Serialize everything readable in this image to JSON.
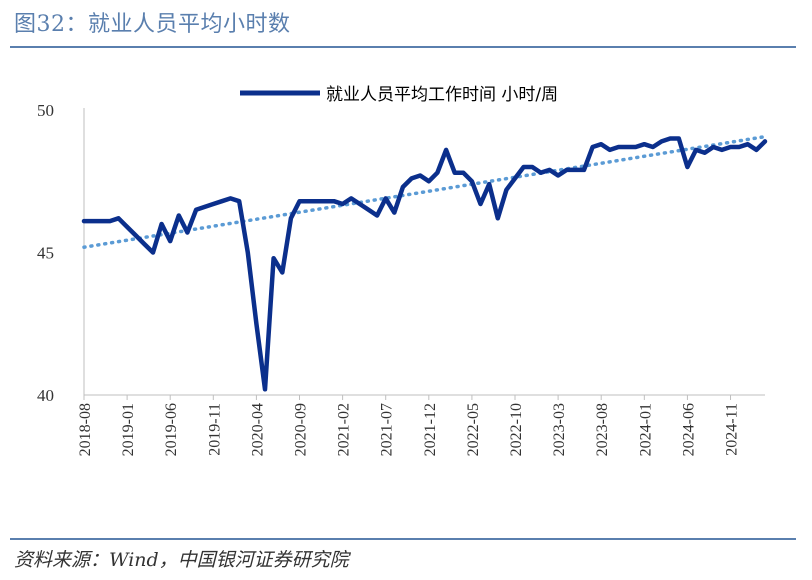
{
  "figure": {
    "title": "图32：就业人员平均小时数",
    "source": "资料来源：Wind，中国银河证券研究院"
  },
  "colors": {
    "series": "#0b2f8c",
    "trend": "#5b9bd5",
    "rule": "#5a7fae",
    "axis": "#bfbfbf"
  },
  "chart_data": {
    "type": "line",
    "title": "",
    "xlabel": "",
    "ylabel": "",
    "ylim": [
      40,
      50
    ],
    "yticks": [
      40,
      45,
      50
    ],
    "xticks": [
      "2018-08",
      "2019-01",
      "2019-06",
      "2019-11",
      "2020-04",
      "2020-09",
      "2021-02",
      "2021-07",
      "2021-12",
      "2022-05",
      "2022-10",
      "2023-03",
      "2023-08",
      "2024-01",
      "2024-06",
      "2024-11"
    ],
    "legend": "top",
    "grid": false,
    "x_start": "2018-08",
    "series": [
      {
        "name": "就业人员平均工作时间 小时/周",
        "values": [
          46.1,
          46.1,
          46.1,
          46.1,
          46.2,
          45.9,
          45.6,
          45.3,
          45.0,
          46.0,
          45.4,
          46.3,
          45.7,
          46.5,
          46.6,
          46.7,
          46.8,
          46.9,
          46.8,
          45.0,
          42.5,
          40.2,
          44.8,
          44.3,
          46.2,
          46.8,
          46.8,
          46.8,
          46.8,
          46.8,
          46.7,
          46.9,
          46.7,
          46.5,
          46.3,
          46.9,
          46.4,
          47.3,
          47.6,
          47.7,
          47.5,
          47.8,
          48.6,
          47.8,
          47.8,
          47.5,
          46.7,
          47.4,
          46.2,
          47.2,
          47.6,
          48.0,
          48.0,
          47.8,
          47.9,
          47.7,
          47.9,
          47.9,
          47.9,
          48.7,
          48.8,
          48.6,
          48.7,
          48.7,
          48.7,
          48.8,
          48.7,
          48.9,
          49.0,
          49.0,
          48.0,
          48.6,
          48.5,
          48.7,
          48.6,
          48.7,
          48.7,
          48.8,
          48.6,
          48.9
        ]
      }
    ],
    "trendline": {
      "style": "dotted",
      "linear": true
    }
  }
}
